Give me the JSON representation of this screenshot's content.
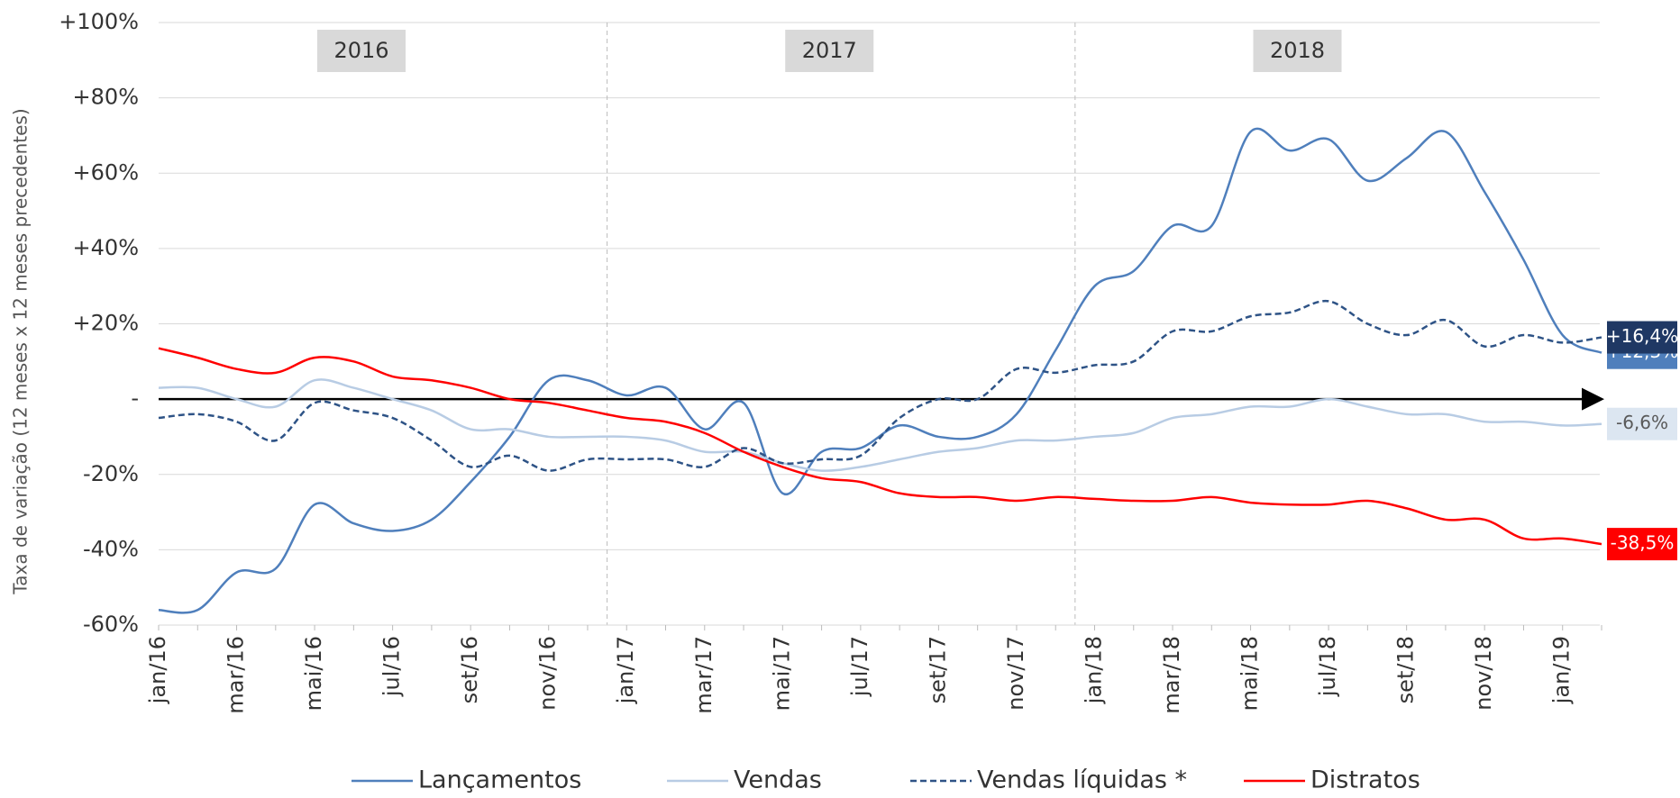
{
  "chart_data": {
    "type": "line",
    "ylabel": "Taxa de variação (12 meses x 12 meses precedentes)",
    "year_labels": [
      "2016",
      "2017",
      "2018"
    ],
    "categories": [
      "jan/16",
      null,
      "mar/16",
      null,
      "mai/16",
      null,
      "jul/16",
      null,
      "set/16",
      null,
      "nov/16",
      null,
      "jan/17",
      null,
      "mar/17",
      null,
      "mai/17",
      null,
      "jul/17",
      null,
      "set/17",
      null,
      "nov/17",
      null,
      "jan/18",
      null,
      "mar/18",
      null,
      "mai/18",
      null,
      "jul/18",
      null,
      "set/18",
      null,
      "nov/18",
      null,
      "jan/19",
      null
    ],
    "ylim": [
      -60,
      100
    ],
    "yticks": [
      {
        "value": -60,
        "label": "-60%"
      },
      {
        "value": -40,
        "label": "-40%"
      },
      {
        "value": -20,
        "label": "-20%"
      },
      {
        "value": 0,
        "label": "-"
      },
      {
        "value": 20,
        "label": "+20%"
      },
      {
        "value": 40,
        "label": "+40%"
      },
      {
        "value": 60,
        "label": "+60%"
      },
      {
        "value": 80,
        "label": "+80%"
      },
      {
        "value": 100,
        "label": "+100%"
      }
    ],
    "grid": true,
    "series": [
      {
        "name": "Lançamentos",
        "color": "#4f7fbc",
        "dash": false,
        "label_bg": "#4f7fbc",
        "label_color": "#ffffff",
        "values": [
          -56,
          -56,
          -46,
          -45,
          -28,
          -33,
          -35,
          -32,
          -22,
          -10,
          5,
          5,
          1,
          3,
          -8,
          -1,
          -25,
          -14,
          -13,
          -7,
          -10,
          -10,
          -4,
          13,
          30,
          34,
          46,
          46,
          71,
          66,
          69,
          58,
          64,
          71,
          55,
          37,
          17,
          12.3
        ],
        "value_labels": [
          null,
          null,
          null,
          null,
          null,
          null,
          null,
          null,
          null,
          null,
          null,
          null,
          null,
          null,
          null,
          null,
          null,
          null,
          null,
          null,
          null,
          null,
          null,
          null,
          null,
          null,
          null,
          null,
          null,
          null,
          null,
          null,
          null,
          null,
          null,
          null,
          null,
          "+12,3%"
        ]
      },
      {
        "name": "Vendas",
        "color": "#b8cce4",
        "dash": false,
        "label_bg": "#dce6f1",
        "label_color": "#595959",
        "values": [
          3,
          3,
          0,
          -2,
          5,
          3,
          0,
          -3,
          -8,
          -8,
          -10,
          -10,
          -10,
          -11,
          -14,
          -14,
          -17,
          -19,
          -18,
          -16,
          -14,
          -13,
          -11,
          -11,
          -10,
          -9,
          -5,
          -4,
          -2,
          -2,
          0,
          -2,
          -4,
          -4,
          -6,
          -6,
          -7,
          -6.6
        ],
        "value_labels": [
          null,
          null,
          null,
          null,
          null,
          null,
          null,
          null,
          null,
          null,
          null,
          null,
          null,
          null,
          null,
          null,
          null,
          null,
          null,
          null,
          null,
          null,
          null,
          null,
          null,
          null,
          null,
          null,
          null,
          null,
          null,
          null,
          null,
          null,
          null,
          null,
          null,
          "-6,6%"
        ]
      },
      {
        "name": "Vendas líquidas *",
        "color": "#2e5386",
        "dash": true,
        "label_bg": "#1f3864",
        "label_color": "#ffffff",
        "values": [
          -5,
          -4,
          -6,
          -11,
          -1,
          -3,
          -5,
          -11,
          -18,
          -15,
          -19,
          -16,
          -16,
          -16,
          -18,
          -13,
          -17,
          -16,
          -15,
          -5,
          0,
          0,
          8,
          7,
          9,
          10,
          18,
          18,
          22,
          23,
          26,
          20,
          17,
          21,
          14,
          17,
          15,
          16.4
        ],
        "value_labels": [
          null,
          null,
          null,
          null,
          null,
          null,
          null,
          null,
          null,
          null,
          null,
          null,
          null,
          null,
          null,
          null,
          null,
          null,
          null,
          null,
          null,
          null,
          null,
          null,
          null,
          null,
          null,
          null,
          null,
          null,
          null,
          null,
          null,
          null,
          null,
          null,
          null,
          "+16,4%"
        ]
      },
      {
        "name": "Distratos",
        "color": "#ff0000",
        "dash": false,
        "label_bg": "#ff0000",
        "label_color": "#ffffff",
        "values": [
          13.5,
          11,
          8,
          7,
          11,
          10,
          6,
          5,
          3,
          0,
          -1,
          -3,
          -5,
          -6,
          -9,
          -14,
          -18,
          -21,
          -22,
          -25,
          -26,
          -26,
          -27,
          -26,
          -26.5,
          -27,
          -27,
          -26,
          -27.5,
          -28,
          -28,
          -27,
          -29,
          -32,
          -32,
          -37,
          -37,
          -38.5
        ],
        "value_labels": [
          null,
          null,
          null,
          null,
          null,
          null,
          null,
          null,
          null,
          null,
          null,
          null,
          null,
          null,
          null,
          null,
          null,
          null,
          null,
          null,
          null,
          null,
          null,
          null,
          null,
          null,
          null,
          null,
          null,
          null,
          null,
          null,
          null,
          null,
          null,
          null,
          null,
          "-38,5%"
        ]
      }
    ]
  }
}
